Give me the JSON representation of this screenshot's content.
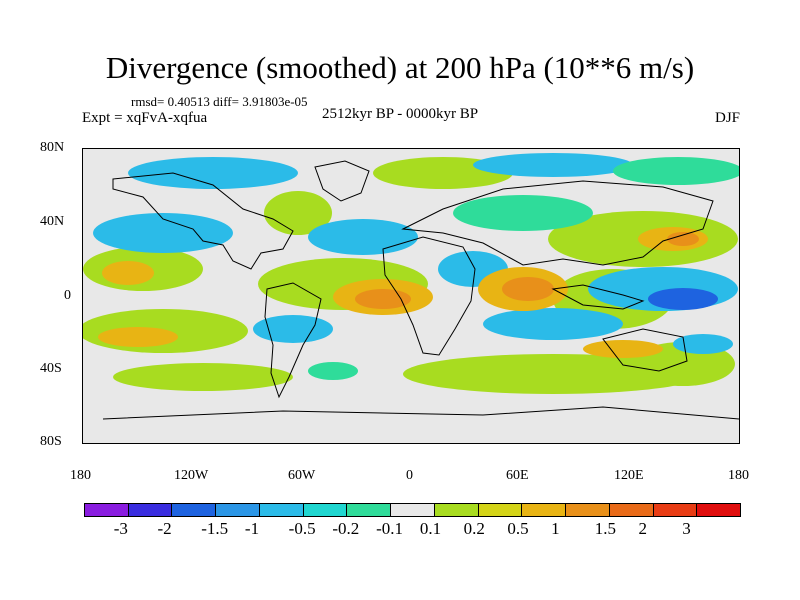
{
  "title": "Divergence (smoothed) at 200 hPa (10**6 m/s)",
  "stats_text": "rmsd= 0.40513 diff= 3.91803e-05",
  "expt_text": "Expt = xqFvA-xqfua",
  "period_text": "2512kyr BP - 0000kyr BP",
  "season_text": "DJF",
  "lat_labels": [
    "80N",
    "40N",
    "0",
    "40S",
    "80S"
  ],
  "lon_labels": [
    "180",
    "120W",
    "60W",
    "0",
    "60E",
    "120E",
    "180"
  ],
  "colorbar": {
    "labels": [
      "-3",
      "-2",
      "-1.5",
      "-1",
      "-0.5",
      "-0.2",
      "-0.1",
      "0.1",
      "0.2",
      "0.5",
      "1",
      "1.5",
      "2",
      "3"
    ],
    "colors": [
      "#8a1de0",
      "#3a2de0",
      "#1e63e0",
      "#2b96e6",
      "#2bbbe8",
      "#20d6d0",
      "#2fdc9a",
      "#e8e8e8",
      "#a8dc20",
      "#d4d418",
      "#e8b414",
      "#e8901a",
      "#e86a18",
      "#e83c14",
      "#e00e0e"
    ]
  }
}
